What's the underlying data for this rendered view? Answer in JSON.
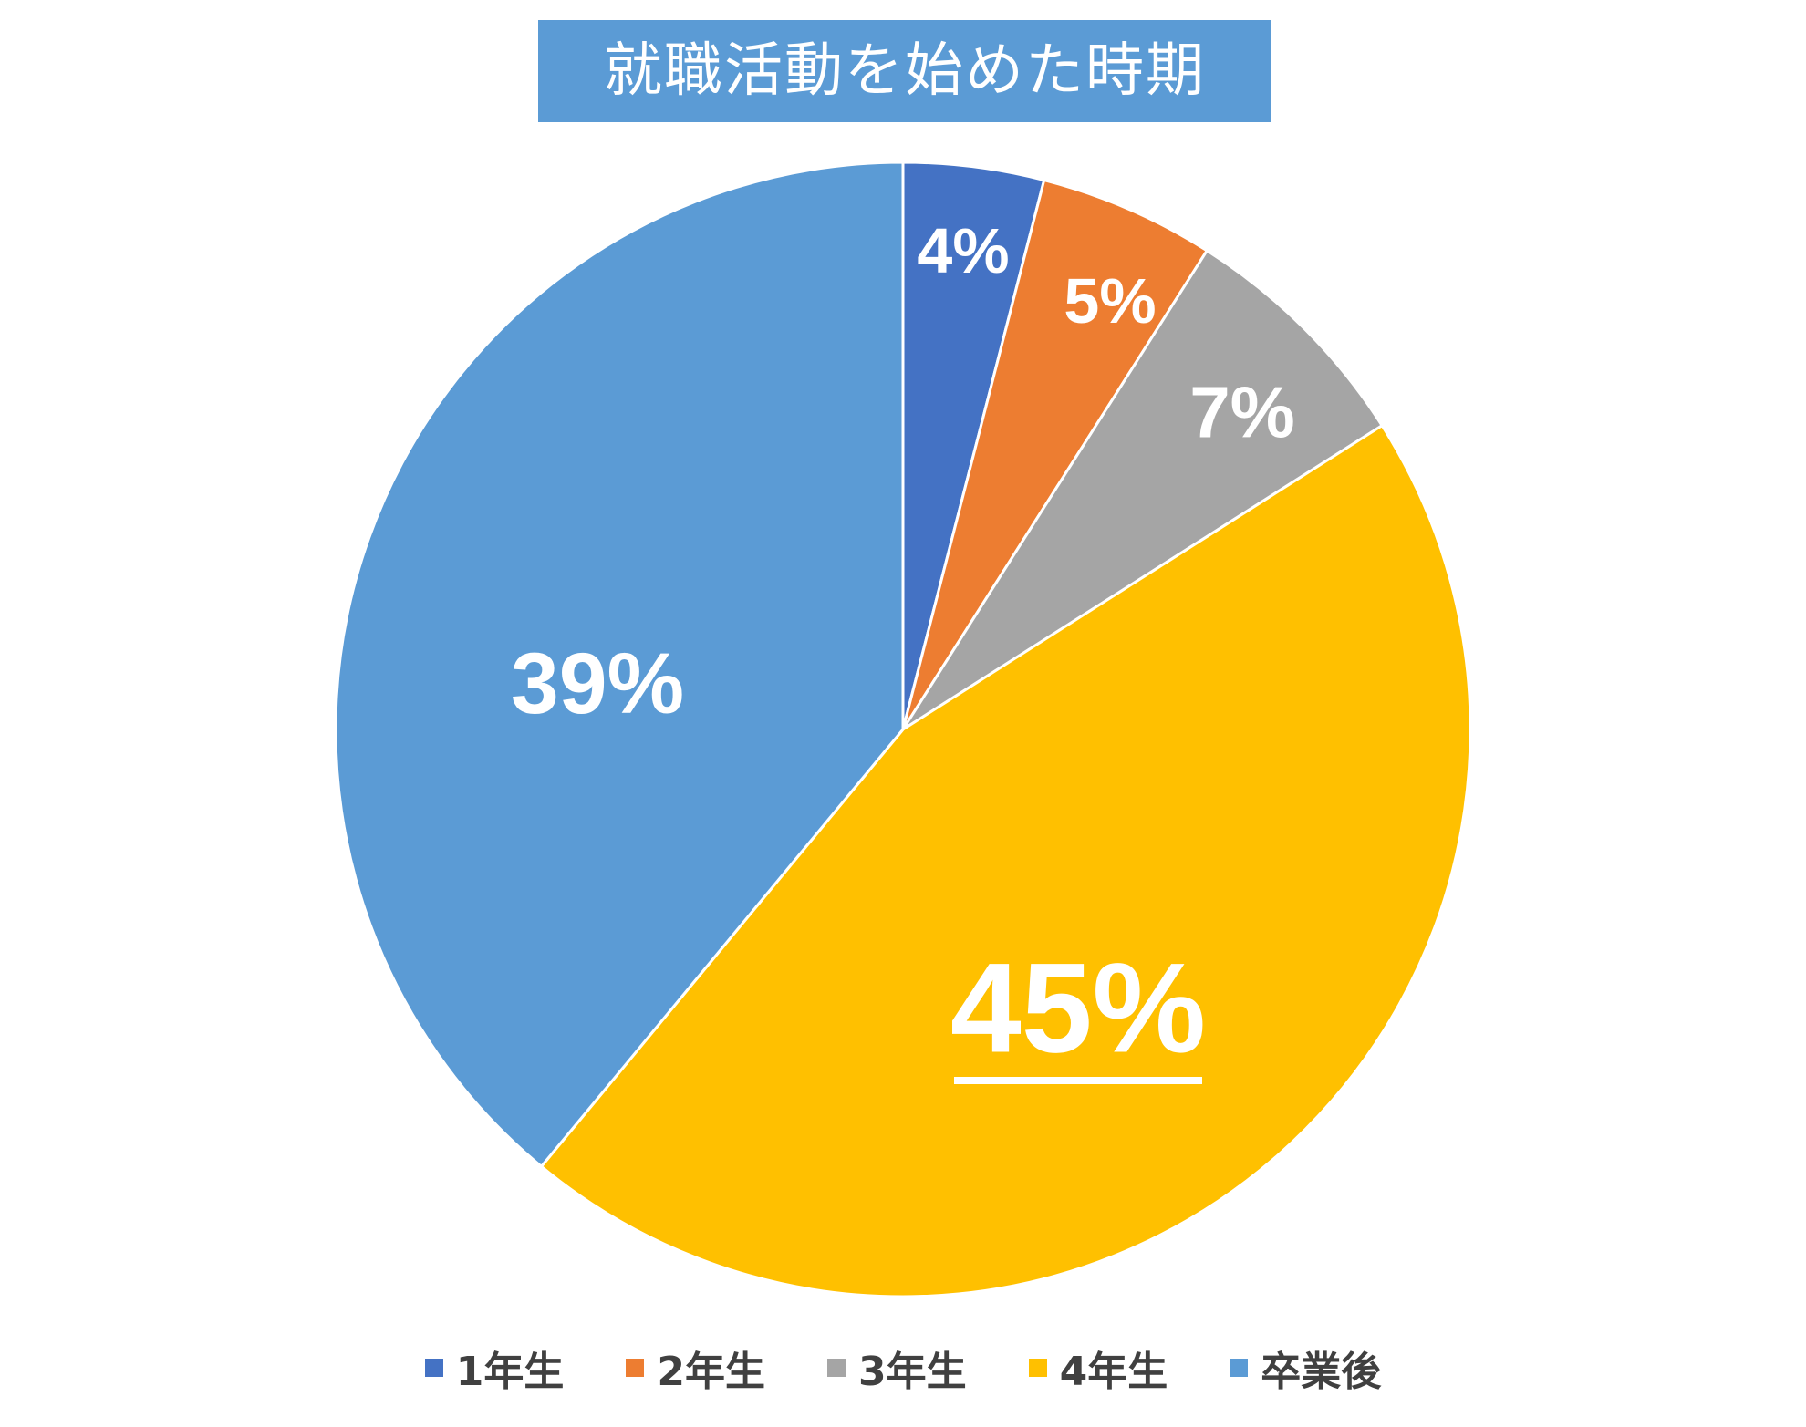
{
  "chart_data": {
    "type": "pie",
    "title": "就職活動を始めた時期",
    "categories": [
      "1年生",
      "2年生",
      "3年生",
      "4年生",
      "卒業後"
    ],
    "values": [
      4,
      5,
      7,
      45,
      39
    ],
    "labels": [
      "4%",
      "5%",
      "7%",
      "45%",
      "39%"
    ],
    "colors": [
      "#4472c4",
      "#ed7d31",
      "#a5a5a5",
      "#ffc000",
      "#5b9bd5"
    ],
    "emphasized_label": "45%",
    "legend_position": "bottom"
  }
}
